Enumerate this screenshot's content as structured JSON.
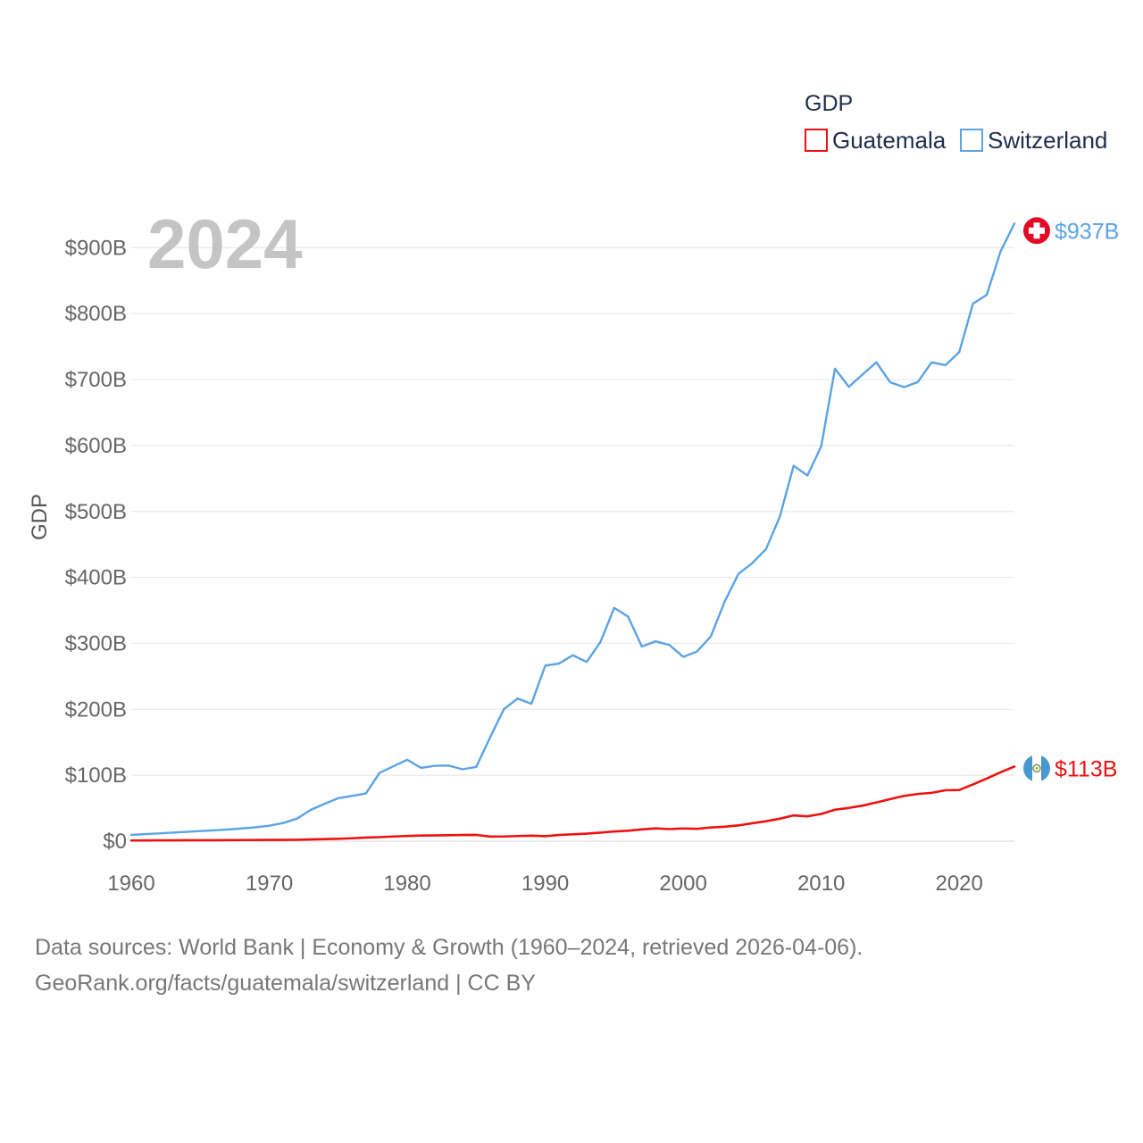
{
  "chart_data": {
    "type": "line",
    "title": "GDP",
    "ylabel": "GDP",
    "xlabel": "",
    "year_watermark": "2024",
    "xlim": [
      1960,
      2024
    ],
    "ylim": [
      0,
      950
    ],
    "x_ticks": [
      1960,
      1970,
      1980,
      1990,
      2000,
      2010,
      2020
    ],
    "x_tick_labels": [
      "1960",
      "1970",
      "1980",
      "1990",
      "2000",
      "2010",
      "2020"
    ],
    "y_ticks": [
      0,
      100,
      200,
      300,
      400,
      500,
      600,
      700,
      800,
      900
    ],
    "y_tick_labels": [
      "$0",
      "$100B",
      "$200B",
      "$300B",
      "$400B",
      "$500B",
      "$600B",
      "$700B",
      "$800B",
      "$900B"
    ],
    "grid": true,
    "legend_position": "top-right",
    "legend_title": "GDP",
    "series": [
      {
        "name": "Guatemala",
        "color": "#ee1111",
        "end_label": "$113B",
        "flag": "guatemala-flag",
        "x": [
          1960,
          1961,
          1962,
          1963,
          1964,
          1965,
          1966,
          1967,
          1968,
          1969,
          1970,
          1971,
          1972,
          1973,
          1974,
          1975,
          1976,
          1977,
          1978,
          1979,
          1980,
          1981,
          1982,
          1983,
          1984,
          1985,
          1986,
          1987,
          1988,
          1989,
          1990,
          1991,
          1992,
          1993,
          1994,
          1995,
          1996,
          1997,
          1998,
          1999,
          2000,
          2001,
          2002,
          2003,
          2004,
          2005,
          2006,
          2007,
          2008,
          2009,
          2010,
          2011,
          2012,
          2013,
          2014,
          2015,
          2016,
          2017,
          2018,
          2019,
          2020,
          2021,
          2022,
          2023,
          2024
        ],
        "values": [
          1.0,
          1.1,
          1.2,
          1.3,
          1.4,
          1.4,
          1.5,
          1.6,
          1.7,
          1.8,
          1.9,
          2.0,
          2.1,
          2.6,
          3.2,
          3.6,
          4.4,
          5.5,
          6.1,
          7.1,
          7.9,
          8.6,
          8.7,
          9.0,
          9.4,
          9.5,
          7.0,
          7.1,
          7.8,
          8.4,
          7.6,
          9.4,
          10.4,
          11.4,
          12.9,
          14.7,
          15.8,
          17.8,
          19.4,
          18.3,
          19.3,
          18.7,
          20.8,
          21.9,
          23.9,
          27.2,
          30.2,
          34.1,
          39.1,
          37.7,
          41.3,
          47.7,
          50.4,
          53.9,
          58.8,
          63.8,
          68.7,
          71.6,
          73.3,
          77.2,
          77.6,
          86.1,
          95.0,
          104.5,
          113.2
        ]
      },
      {
        "name": "Switzerland",
        "color": "#5ba3e6",
        "end_label": "$937B",
        "flag": "switzerland-flag",
        "x": [
          1960,
          1961,
          1962,
          1963,
          1964,
          1965,
          1966,
          1967,
          1968,
          1969,
          1970,
          1971,
          1972,
          1973,
          1974,
          1975,
          1976,
          1977,
          1978,
          1979,
          1980,
          1981,
          1982,
          1983,
          1984,
          1985,
          1986,
          1987,
          1988,
          1989,
          1990,
          1991,
          1992,
          1993,
          1994,
          1995,
          1996,
          1997,
          1998,
          1999,
          2000,
          2001,
          2002,
          2003,
          2004,
          2005,
          2006,
          2007,
          2008,
          2009,
          2010,
          2011,
          2012,
          2013,
          2014,
          2015,
          2016,
          2017,
          2018,
          2019,
          2020,
          2021,
          2022,
          2023,
          2024
        ],
        "values": [
          9.5,
          10.7,
          11.8,
          12.9,
          14.1,
          15.3,
          16.5,
          17.7,
          19.3,
          21.1,
          23.4,
          27.5,
          34.1,
          47.4,
          56.5,
          65.2,
          68.6,
          72.3,
          103.7,
          113.7,
          123.4,
          111.2,
          114.4,
          114.7,
          109.0,
          112.6,
          157.3,
          200.1,
          216.3,
          208.4,
          266.1,
          269.4,
          282.0,
          271.8,
          302.0,
          353.8,
          340.6,
          295.2,
          303.1,
          297.5,
          279.5,
          287.6,
          310.5,
          363.2,
          405.3,
          421.6,
          442.9,
          492.1,
          569.3,
          554.5,
          598.8,
          716.6,
          688.9,
          707.9,
          726.1,
          695.8,
          688.5,
          696.2,
          726.1,
          721.8,
          741.5,
          815.2,
          828.5,
          894.5,
          936.6
        ]
      }
    ]
  },
  "footer": {
    "line1": "Data sources: World Bank | Economy & Growth (1960–2024, retrieved 2026-04-06).",
    "line2": "GeoRank.org/facts/guatemala/switzerland | CC BY"
  }
}
